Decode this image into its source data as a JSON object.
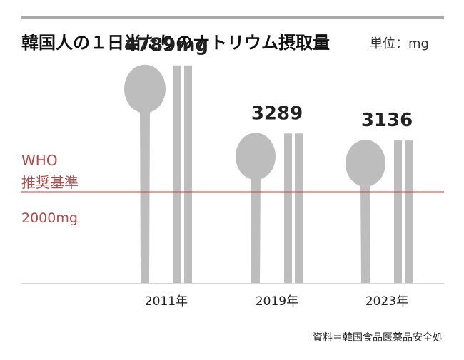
{
  "chart_data": {
    "type": "bar",
    "title": "韓国人の１日当たりのナトリウム摂取量",
    "unit_label": "単位：mg",
    "categories": [
      "2011年",
      "2019年",
      "2023年"
    ],
    "values": [
      4789,
      3289,
      3136
    ],
    "value_labels": [
      "4789mg",
      "3289",
      "3136"
    ],
    "ylim": [
      0,
      5600
    ],
    "reference_line": {
      "value": 2000,
      "label_lines": [
        "WHO",
        "推奨基準"
      ],
      "value_label": "2000mg"
    },
    "source": "資料＝韓国食品医薬品安全処",
    "colors": {
      "bar": "#bdbdbd",
      "reference": "#b04a4a",
      "text": "#222222",
      "rule": "#aaaaaa"
    }
  }
}
